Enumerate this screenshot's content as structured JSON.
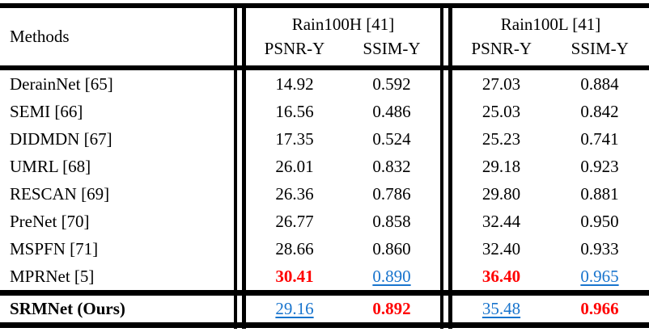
{
  "table": {
    "methods_header": "Methods",
    "groups": [
      {
        "name": "Rain100H [41]",
        "cols": [
          "PSNR-Y",
          "SSIM-Y"
        ]
      },
      {
        "name": "Rain100L [41]",
        "cols": [
          "PSNR-Y",
          "SSIM-Y"
        ]
      }
    ],
    "rows": [
      {
        "method": "DerainNet [65]",
        "h_psnr": "14.92",
        "h_ssim": "0.592",
        "l_psnr": "27.03",
        "l_ssim": "0.884"
      },
      {
        "method": "SEMI [66]",
        "h_psnr": "16.56",
        "h_ssim": "0.486",
        "l_psnr": "25.03",
        "l_ssim": "0.842"
      },
      {
        "method": "DIDMDN [67]",
        "h_psnr": "17.35",
        "h_ssim": "0.524",
        "l_psnr": "25.23",
        "l_ssim": "0.741"
      },
      {
        "method": "UMRL [68]",
        "h_psnr": "26.01",
        "h_ssim": "0.832",
        "l_psnr": "29.18",
        "l_ssim": "0.923"
      },
      {
        "method": "RESCAN [69]",
        "h_psnr": "26.36",
        "h_ssim": "0.786",
        "l_psnr": "29.80",
        "l_ssim": "0.881"
      },
      {
        "method": "PreNet [70]",
        "h_psnr": "26.77",
        "h_ssim": "0.858",
        "l_psnr": "32.44",
        "l_ssim": "0.950"
      },
      {
        "method": "MSPFN [71]",
        "h_psnr": "28.66",
        "h_ssim": "0.860",
        "l_psnr": "32.40",
        "l_ssim": "0.933"
      },
      {
        "method": "MPRNet [5]",
        "h_psnr": "30.41",
        "h_ssim": "0.890",
        "l_psnr": "36.40",
        "l_ssim": "0.965"
      },
      {
        "method": "SRMNet (Ours)",
        "h_psnr": "29.16",
        "h_ssim": "0.892",
        "l_psnr": "35.48",
        "l_ssim": "0.966"
      }
    ]
  },
  "colors": {
    "best": "#ff0000",
    "second": "#1874cd",
    "rule": "#000000"
  }
}
